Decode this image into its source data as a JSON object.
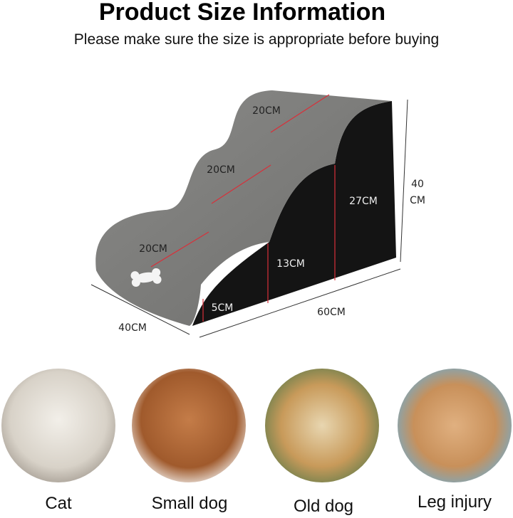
{
  "header": {
    "title": "Product Size Information",
    "subtitle": "Please make sure the size is appropriate before buying"
  },
  "dimensions": {
    "step_depths": [
      "20CM",
      "20CM",
      "20CM"
    ],
    "heights": [
      "27CM",
      "13CM",
      "5CM"
    ],
    "total_height": [
      "40",
      "CM"
    ],
    "width": "40CM",
    "length": "60CM"
  },
  "uses": [
    {
      "label": "Cat"
    },
    {
      "label": "Small dog"
    },
    {
      "label": "Old dog"
    },
    {
      "label": "Leg injury"
    }
  ]
}
